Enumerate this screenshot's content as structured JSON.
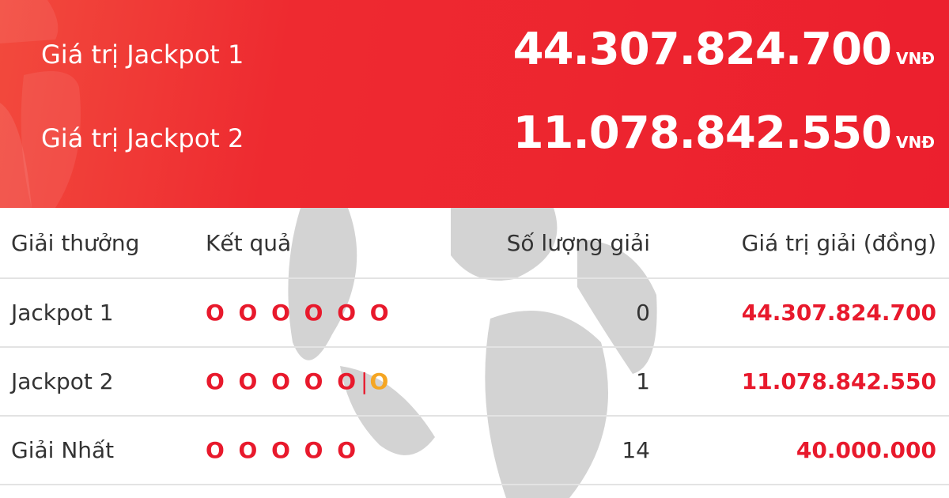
{
  "jackpots": [
    {
      "label": "Giá trị Jackpot 1",
      "value": "44.307.824.700",
      "unit": "VNĐ"
    },
    {
      "label": "Giá trị Jackpot 2",
      "value": "11.078.842.550",
      "unit": "VNĐ"
    }
  ],
  "table": {
    "headers": [
      "Giải thưởng",
      "Kết quả",
      "Số lượng giải",
      "Giá trị giải (đồng)"
    ],
    "rows": [
      {
        "name": "Jackpot 1",
        "result": "O O O O O O",
        "extra": "",
        "count": "0",
        "value": "44.307.824.700"
      },
      {
        "name": "Jackpot 2",
        "result": "O O O O O",
        "extra": "O",
        "count": "1",
        "value": "11.078.842.550"
      },
      {
        "name": "Giải Nhất",
        "result": "O O O O O",
        "extra": "",
        "count": "14",
        "value": "40.000.000"
      }
    ]
  },
  "colors": {
    "brand_red": "#ec1f2e",
    "prize_red": "#e8192c",
    "extra_orange": "#f5a623",
    "watermark": "#d3d3d3"
  }
}
